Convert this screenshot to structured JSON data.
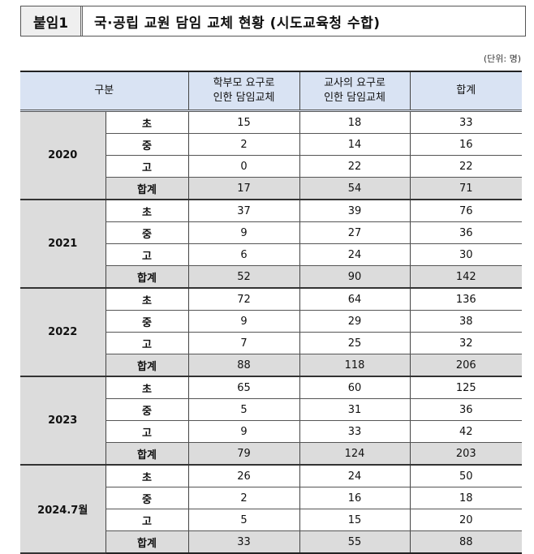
{
  "title": {
    "label": "붙임1",
    "text": "국·공립 교원 담임 교체 현황 (시도교육청 수합)"
  },
  "unit": "(단위: 명)",
  "table": {
    "headers": [
      "구분",
      "학부모 요구로 인한 담임교체",
      "교사의 요구로 인한 담임교체",
      "합계"
    ],
    "groups": [
      {
        "year": "2020",
        "rows": [
          {
            "sub": "초",
            "parent": "15",
            "teacher": "18",
            "total": "33"
          },
          {
            "sub": "중",
            "parent": "2",
            "teacher": "14",
            "total": "16"
          },
          {
            "sub": "고",
            "parent": "0",
            "teacher": "22",
            "total": "22"
          },
          {
            "sub": "합계",
            "parent": "17",
            "teacher": "54",
            "total": "71"
          }
        ]
      },
      {
        "year": "2021",
        "rows": [
          {
            "sub": "초",
            "parent": "37",
            "teacher": "39",
            "total": "76"
          },
          {
            "sub": "중",
            "parent": "9",
            "teacher": "27",
            "total": "36"
          },
          {
            "sub": "고",
            "parent": "6",
            "teacher": "24",
            "total": "30"
          },
          {
            "sub": "합계",
            "parent": "52",
            "teacher": "90",
            "total": "142"
          }
        ]
      },
      {
        "year": "2022",
        "rows": [
          {
            "sub": "초",
            "parent": "72",
            "teacher": "64",
            "total": "136"
          },
          {
            "sub": "중",
            "parent": "9",
            "teacher": "29",
            "total": "38"
          },
          {
            "sub": "고",
            "parent": "7",
            "teacher": "25",
            "total": "32"
          },
          {
            "sub": "합계",
            "parent": "88",
            "teacher": "118",
            "total": "206"
          }
        ]
      },
      {
        "year": "2023",
        "rows": [
          {
            "sub": "초",
            "parent": "65",
            "teacher": "60",
            "total": "125"
          },
          {
            "sub": "중",
            "parent": "5",
            "teacher": "31",
            "total": "36"
          },
          {
            "sub": "고",
            "parent": "9",
            "teacher": "33",
            "total": "42"
          },
          {
            "sub": "합계",
            "parent": "79",
            "teacher": "124",
            "total": "203"
          }
        ]
      },
      {
        "year": "2024.7월",
        "rows": [
          {
            "sub": "초",
            "parent": "26",
            "teacher": "24",
            "total": "50"
          },
          {
            "sub": "중",
            "parent": "2",
            "teacher": "16",
            "total": "18"
          },
          {
            "sub": "고",
            "parent": "5",
            "teacher": "15",
            "total": "20"
          },
          {
            "sub": "합계",
            "parent": "33",
            "teacher": "55",
            "total": "88"
          }
        ]
      }
    ]
  }
}
